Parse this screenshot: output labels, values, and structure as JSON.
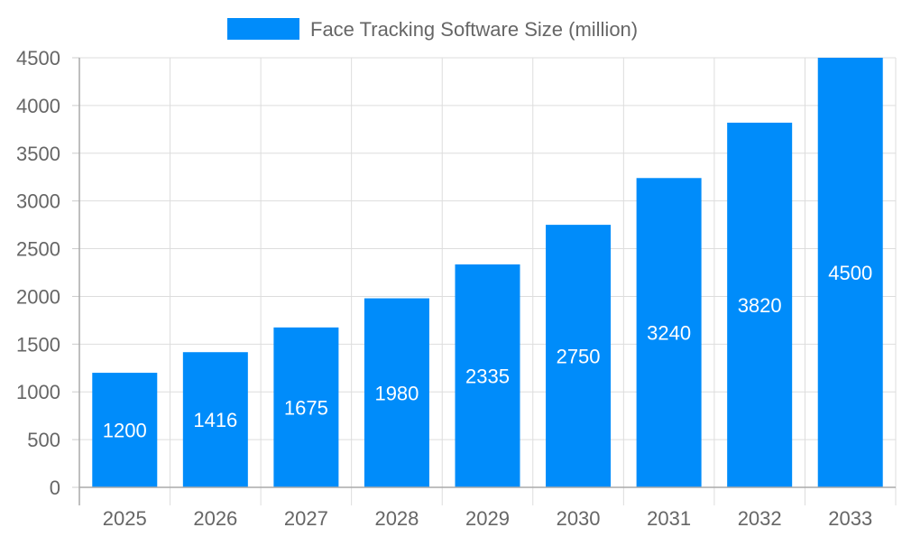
{
  "chart_data": {
    "type": "bar",
    "title": "",
    "xlabel": "",
    "ylabel": "",
    "categories": [
      "2025",
      "2026",
      "2027",
      "2028",
      "2029",
      "2030",
      "2031",
      "2032",
      "2033"
    ],
    "series": [
      {
        "name": "Face Tracking Software Size (million)",
        "values": [
          1200,
          1416,
          1675,
          1980,
          2335,
          2750,
          3240,
          3820,
          4500
        ],
        "color": "#008cfa"
      }
    ],
    "ylim": [
      0,
      4500
    ],
    "yticks": [
      0,
      500,
      1000,
      1500,
      2000,
      2500,
      3000,
      3500,
      4000,
      4500
    ],
    "grid": true,
    "legend": "top-center",
    "data_labels": true
  }
}
